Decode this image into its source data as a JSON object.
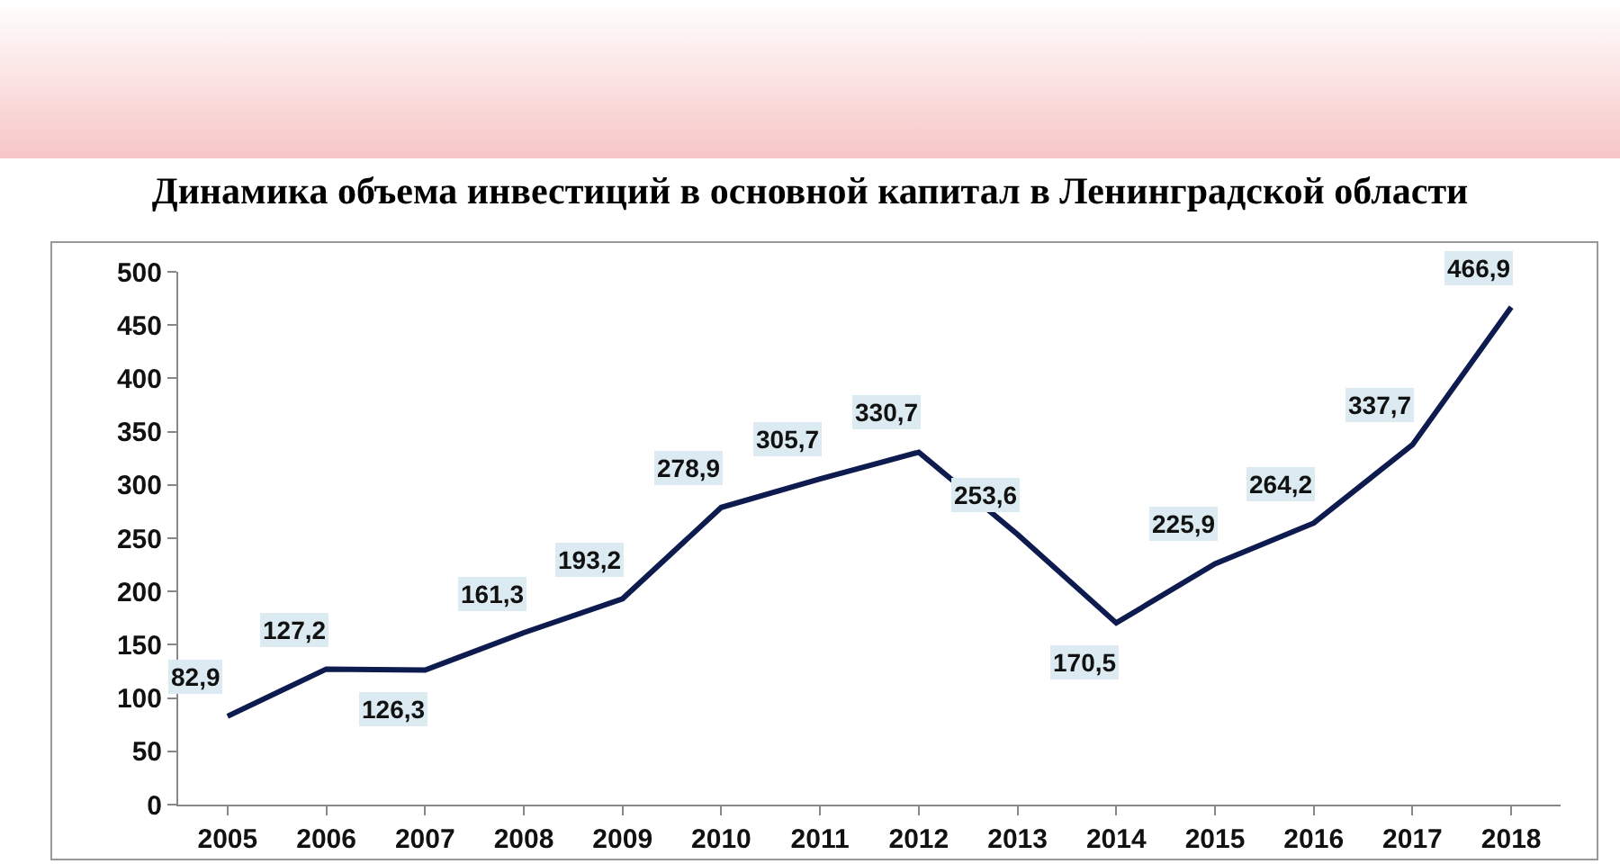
{
  "chart_data": {
    "type": "line",
    "title": "Динамика объема инвестиций в основной капитал в Ленинградской области",
    "categories": [
      "2005",
      "2006",
      "2007",
      "2008",
      "2009",
      "2010",
      "2011",
      "2012",
      "2013",
      "2014",
      "2015",
      "2016",
      "2017",
      "2018"
    ],
    "series": [
      {
        "color": "#0d1b4f",
        "values": [
          82.9,
          127.2,
          126.3,
          161.3,
          193.2,
          278.9,
          305.7,
          330.7,
          253.6,
          170.5,
          225.9,
          264.2,
          337.7,
          466.9
        ],
        "value_labels": [
          "82,9",
          "127,2",
          "126,3",
          "161,3",
          "193,2",
          "278,9",
          "305,7",
          "330,7",
          "253,6",
          "170,5",
          "225,9",
          "264,2",
          "337,7",
          "466,9"
        ]
      }
    ],
    "ylim": [
      0,
      500
    ],
    "yticks": [
      0,
      50,
      100,
      150,
      200,
      250,
      300,
      350,
      400,
      450,
      500
    ],
    "grid": false,
    "marker": "none",
    "line_style": "solid"
  }
}
